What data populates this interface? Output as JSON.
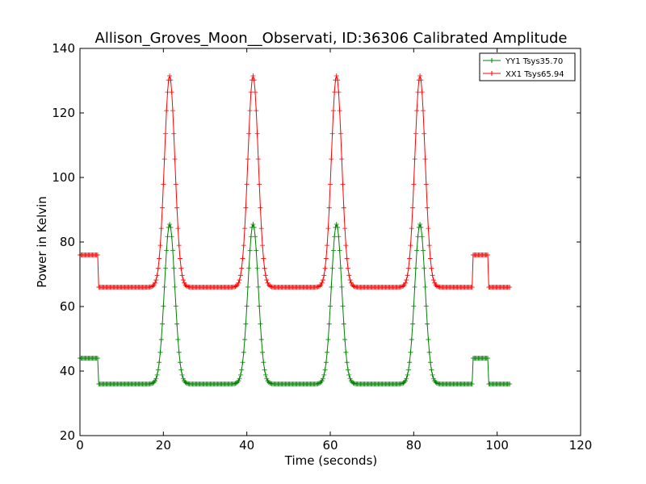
{
  "chart_data": {
    "type": "line",
    "title": "Allison_Groves_Moon__Observati, ID:36306 Calibrated Amplitude",
    "xlabel": "Time (seconds)",
    "ylabel": "Power in Kelvin",
    "xlim": [
      0,
      120
    ],
    "ylim": [
      20,
      140
    ],
    "xticks": [
      0,
      20,
      40,
      60,
      80,
      100,
      120
    ],
    "yticks": [
      20,
      40,
      60,
      80,
      100,
      120,
      140
    ],
    "grid": false,
    "legend_position": "top-right",
    "marker": "+",
    "series": [
      {
        "name": "YY1 Tsys35.70",
        "color": "#008000",
        "baseline_levels": [
          44,
          36,
          44,
          36
        ],
        "peak_value": 85.5,
        "peak_times": [
          21.5,
          41.5,
          61.5,
          81.5
        ],
        "segments": [
          {
            "x_start": 0,
            "x_end": 4.3,
            "value": 44
          },
          {
            "x_start": 4.3,
            "x_end": 94.2,
            "value": 36
          },
          {
            "x_start": 94.2,
            "x_end": 97.8,
            "value": 44
          },
          {
            "x_start": 97.8,
            "x_end": 103,
            "value": 36
          }
        ]
      },
      {
        "name": "XX1 Tsys65.94",
        "color": "#ff0000",
        "baseline_levels": [
          76,
          66,
          76,
          66
        ],
        "peak_value": 131.5,
        "peak_times": [
          21.5,
          41.5,
          61.5,
          81.5
        ],
        "segments": [
          {
            "x_start": 0,
            "x_end": 4.3,
            "value": 76
          },
          {
            "x_start": 4.3,
            "x_end": 94.2,
            "value": 66
          },
          {
            "x_start": 94.2,
            "x_end": 97.8,
            "value": 76
          },
          {
            "x_start": 97.8,
            "x_end": 103,
            "value": 66
          }
        ]
      }
    ]
  }
}
